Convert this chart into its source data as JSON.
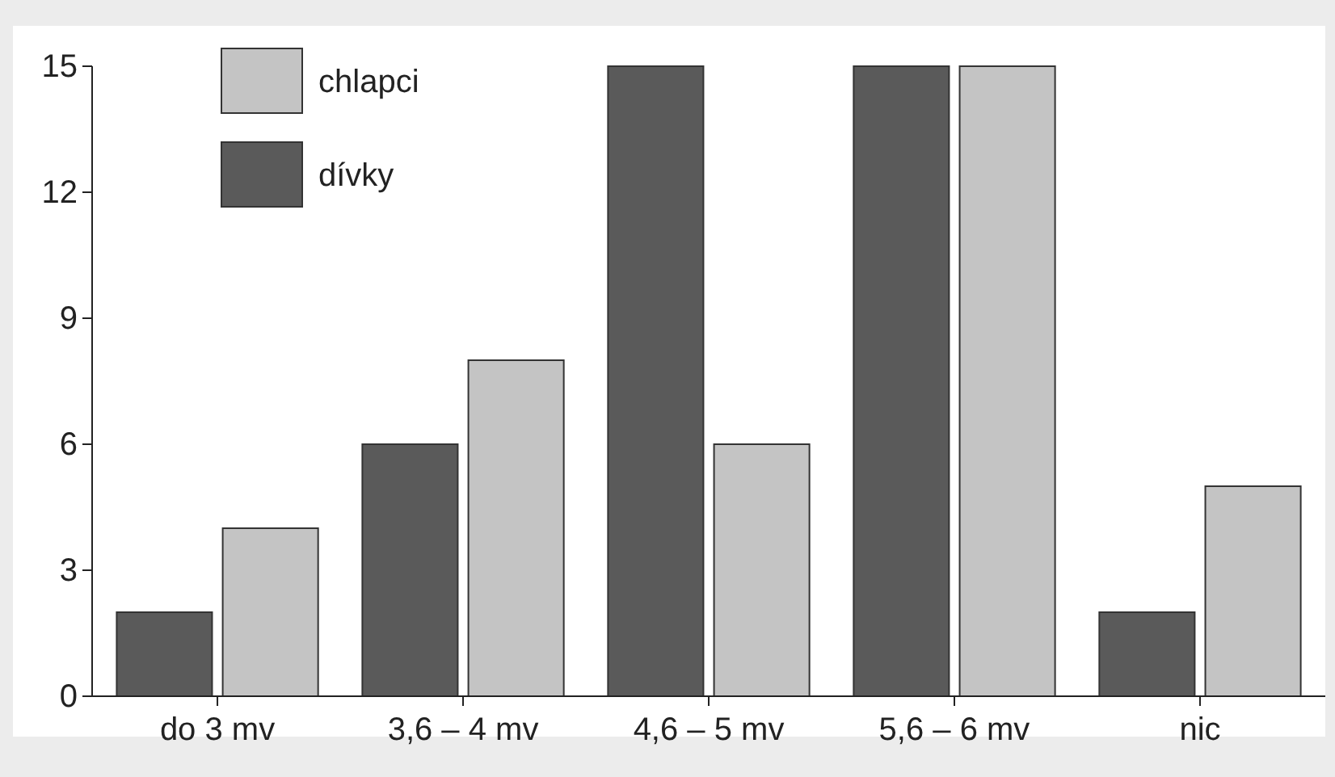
{
  "chart_data": {
    "type": "bar",
    "categories": [
      "do 3 mv",
      "3,6 – 4 mv",
      "4,6 – 5 mv",
      "5,6 – 6 mv",
      "nic"
    ],
    "series": [
      {
        "name": "dívky",
        "color": "#5a5a5a",
        "values": [
          2,
          6,
          15,
          15,
          2
        ]
      },
      {
        "name": "chlapci",
        "color": "#c4c4c4",
        "values": [
          4,
          8,
          6,
          15,
          5
        ]
      }
    ],
    "ylim": [
      0,
      15
    ],
    "yticks": [
      0,
      3,
      6,
      9,
      12,
      15
    ],
    "grid": false,
    "legend": "top left"
  }
}
